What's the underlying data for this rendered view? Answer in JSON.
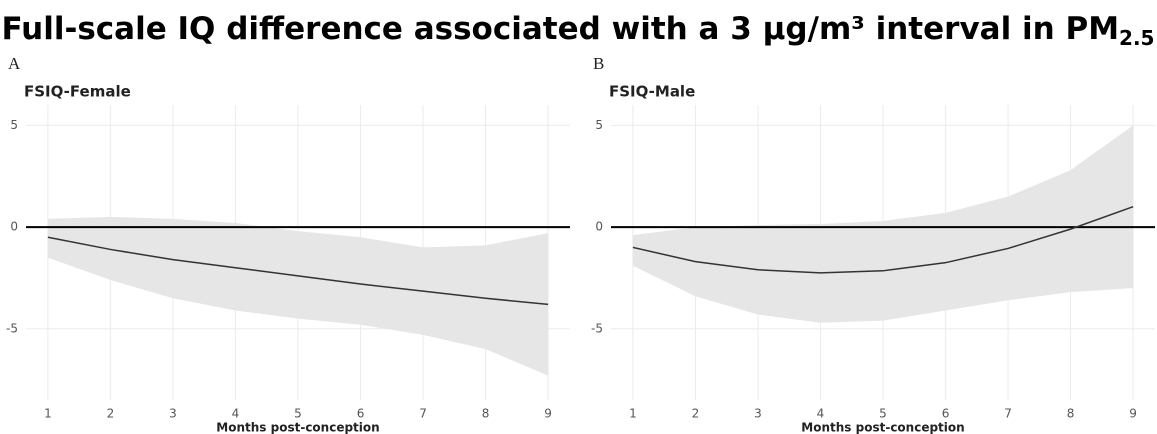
{
  "title": "Full-scale IQ difference associated with a 3 μg/m³ interval in PM",
  "title_subscript": "2.5",
  "chart_data": [
    {
      "type": "line",
      "panel_label": "A",
      "title": "FSIQ-Female",
      "xlabel": "Months post-conception",
      "x": [
        1,
        2,
        3,
        4,
        5,
        6,
        7,
        8,
        9
      ],
      "values": [
        -0.5,
        -1.1,
        -1.6,
        -2.0,
        -2.4,
        -2.8,
        -3.15,
        -3.5,
        -3.8
      ],
      "upper": [
        0.4,
        0.5,
        0.4,
        0.2,
        -0.2,
        -0.5,
        -1.0,
        -0.9,
        -0.3
      ],
      "lower": [
        -1.5,
        -2.6,
        -3.5,
        -4.1,
        -4.5,
        -4.8,
        -5.3,
        -6.0,
        -7.3
      ],
      "color": "#333333",
      "band_color": "#e6e6e6",
      "hline": 0,
      "xlim": [
        0.65,
        9.35
      ],
      "ylim": [
        -8.5,
        6
      ],
      "xticks": [
        1,
        2,
        3,
        4,
        5,
        6,
        7,
        8,
        9
      ],
      "yticks": [
        -5,
        0,
        5
      ],
      "grid": true
    },
    {
      "type": "line",
      "panel_label": "B",
      "title": "FSIQ-Male",
      "xlabel": "Months post-conception",
      "x": [
        1,
        2,
        3,
        4,
        5,
        6,
        7,
        8,
        9
      ],
      "values": [
        -1.0,
        -1.7,
        -2.1,
        -2.25,
        -2.15,
        -1.75,
        -1.05,
        -0.1,
        1.0
      ],
      "upper": [
        -0.4,
        0.0,
        0.1,
        0.15,
        0.3,
        0.7,
        1.5,
        2.8,
        5.0
      ],
      "lower": [
        -1.9,
        -3.4,
        -4.3,
        -4.7,
        -4.6,
        -4.1,
        -3.6,
        -3.2,
        -3.0
      ],
      "color": "#333333",
      "band_color": "#e6e6e6",
      "hline": 0,
      "xlim": [
        0.65,
        9.35
      ],
      "ylim": [
        -8.5,
        6
      ],
      "xticks": [
        1,
        2,
        3,
        4,
        5,
        6,
        7,
        8,
        9
      ],
      "yticks": [
        -5,
        0,
        5
      ],
      "grid": true
    }
  ]
}
